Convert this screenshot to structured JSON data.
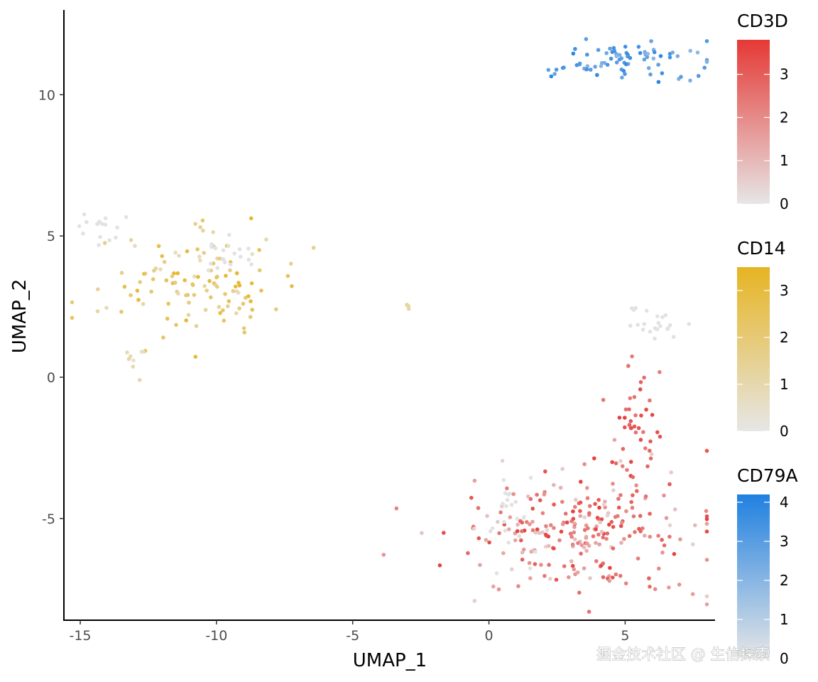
{
  "chart_data": {
    "type": "scatter",
    "xlabel": "UMAP_1",
    "ylabel": "UMAP_2",
    "xlim": [
      -15.6,
      8.3
    ],
    "ylim": [
      -8.6,
      13.0
    ],
    "x_ticks": [
      -15,
      -10,
      -5,
      0,
      5
    ],
    "y_ticks": [
      -5,
      0,
      5,
      10
    ],
    "x_tick_labels": [
      "-15",
      "-10",
      "-5",
      "0",
      "5"
    ],
    "y_tick_labels": [
      "-5",
      "0",
      "5",
      "10"
    ],
    "grid": false,
    "legend_position": "right",
    "legends": [
      {
        "title": "CD3D",
        "color_low": "#e6e6e6",
        "color_high": "#e53935",
        "min": 0,
        "max": 3.8,
        "ticks": [
          0,
          1,
          2,
          3
        ],
        "tick_labels": [
          "0",
          "1",
          "2",
          "3"
        ]
      },
      {
        "title": "CD14",
        "color_low": "#e6e6e6",
        "color_high": "#e6b422",
        "min": 0,
        "max": 3.5,
        "ticks": [
          0,
          1,
          2,
          3
        ],
        "tick_labels": [
          "0",
          "1",
          "2",
          "3"
        ]
      },
      {
        "title": "CD79A",
        "color_low": "#e6e6e6",
        "color_high": "#2080e0",
        "min": 0,
        "max": 4.2,
        "ticks": [
          0,
          1,
          2,
          3,
          4
        ],
        "tick_labels": [
          "0",
          "1",
          "2",
          "3",
          "4"
        ]
      }
    ],
    "clusters": [
      {
        "gene": "CD79A",
        "center": [
          5.0,
          11.2
        ],
        "spread": [
          1.5,
          0.35
        ],
        "count": 80,
        "level_range": [
          1.5,
          4.0
        ],
        "seed": 11
      },
      {
        "gene": "CD14",
        "center": [
          -11.0,
          3.4
        ],
        "spread": [
          1.6,
          0.9
        ],
        "count": 120,
        "level_range": [
          0.4,
          3.2
        ],
        "seed": 22
      },
      {
        "gene": "none",
        "center": [
          -14.2,
          5.2
        ],
        "spread": [
          0.45,
          0.3
        ],
        "count": 16,
        "level_range": [
          0,
          0.3
        ],
        "seed": 33
      },
      {
        "gene": "none",
        "center": [
          -9.6,
          4.2
        ],
        "spread": [
          0.7,
          0.35
        ],
        "count": 18,
        "level_range": [
          0,
          0.3
        ],
        "seed": 44
      },
      {
        "gene": "CD14",
        "center": [
          -13.0,
          0.7
        ],
        "spread": [
          0.25,
          0.3
        ],
        "count": 8,
        "level_range": [
          0.2,
          1.0
        ],
        "seed": 55
      },
      {
        "gene": "CD14",
        "center": [
          -3.0,
          2.45
        ],
        "spread": [
          0.08,
          0.05
        ],
        "count": 4,
        "level_range": [
          0.8,
          1.2
        ],
        "seed": 66
      },
      {
        "gene": "none",
        "center": [
          6.0,
          2.0
        ],
        "spread": [
          0.65,
          0.35
        ],
        "count": 22,
        "level_range": [
          0,
          0.3
        ],
        "seed": 77
      },
      {
        "gene": "CD3D",
        "center": [
          5.3,
          -1.3
        ],
        "spread": [
          0.45,
          1.0
        ],
        "count": 38,
        "level_range": [
          2.0,
          3.6
        ],
        "seed": 88
      },
      {
        "gene": "CD3D",
        "center": [
          3.6,
          -5.4
        ],
        "spread": [
          2.3,
          1.1
        ],
        "count": 260,
        "level_range": [
          0.2,
          3.6
        ],
        "seed": 99
      },
      {
        "gene": "none",
        "center": [
          0.8,
          -5.2
        ],
        "spread": [
          0.45,
          0.8
        ],
        "count": 22,
        "level_range": [
          0,
          0.3
        ],
        "seed": 101
      }
    ],
    "annotations": [
      "掘金技术社区 @ 生信探索"
    ]
  }
}
